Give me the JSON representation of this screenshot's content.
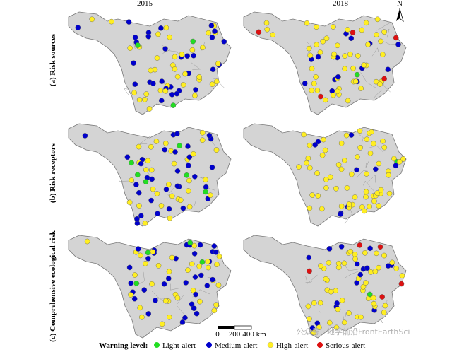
{
  "columns": [
    "2015",
    "2018"
  ],
  "rows": [
    "(a) Risk sources",
    "(b) Risk receptors",
    "(c) Comprehensive ecological risk"
  ],
  "north": "N",
  "scale_bar": [
    "0",
    "200",
    "400 km"
  ],
  "legend": {
    "title": "Warning level:",
    "items": [
      "Light-alert",
      "Medium-alert",
      "High-alert",
      "Serious-alert"
    ]
  },
  "watermark": "公众号 · 地学前沿FrontEarthSci"
}
